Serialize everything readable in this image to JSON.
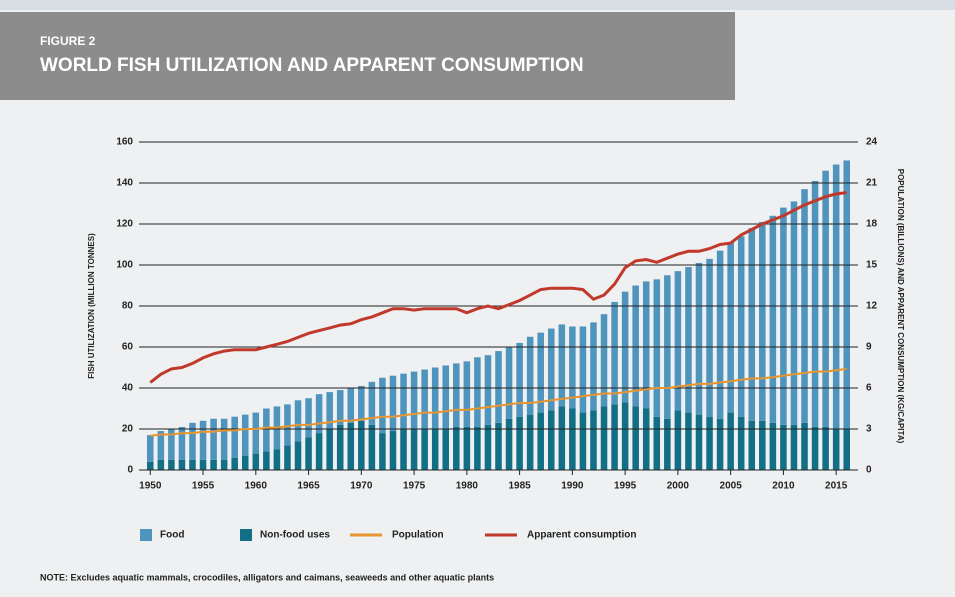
{
  "chart_data": {
    "type": "bar",
    "figure_label": "FIGURE 2",
    "title": "WORLD FISH UTILIZATION AND APPARENT CONSUMPTION",
    "ylabel": "FISH UTILIZATION (MILLION TONNES)",
    "y2label": "POPULATION (BILLIONS) AND APPARENT CONSUMPTION (KG/CAPITA)",
    "note": "NOTE: Excludes aquatic mammals, crocodiles, alligators and caimans, seaweeds and other aquatic plants",
    "x": [
      1950,
      1951,
      1952,
      1953,
      1954,
      1955,
      1956,
      1957,
      1958,
      1959,
      1960,
      1961,
      1962,
      1963,
      1964,
      1965,
      1966,
      1967,
      1968,
      1969,
      1970,
      1971,
      1972,
      1973,
      1974,
      1975,
      1976,
      1977,
      1978,
      1979,
      1980,
      1981,
      1982,
      1983,
      1984,
      1985,
      1986,
      1987,
      1988,
      1989,
      1990,
      1991,
      1992,
      1993,
      1994,
      1995,
      1996,
      1997,
      1998,
      1999,
      2000,
      2001,
      2002,
      2003,
      2004,
      2005,
      2006,
      2007,
      2008,
      2009,
      2010,
      2011,
      2012,
      2013,
      2014,
      2015,
      2016
    ],
    "xlim": [
      1949.5,
      2016.5
    ],
    "xticks": [
      1950,
      1955,
      1960,
      1965,
      1970,
      1975,
      1980,
      1985,
      1990,
      1995,
      2000,
      2005,
      2010,
      2015
    ],
    "ylim": [
      0,
      160
    ],
    "yticks": [
      0,
      20,
      40,
      60,
      80,
      100,
      120,
      140,
      160
    ],
    "y2lim": [
      0,
      24
    ],
    "y2ticks": [
      0,
      3,
      6,
      9,
      12,
      15,
      18,
      21,
      24
    ],
    "grid": true,
    "series": [
      {
        "name": "Food",
        "type": "bar",
        "color": "#4f94bd",
        "values": [
          13,
          14,
          15,
          16,
          18,
          19,
          20,
          20,
          20,
          20,
          20,
          21,
          21,
          20,
          20,
          19,
          19,
          18,
          17,
          17,
          17,
          21,
          27,
          27,
          27,
          28,
          29,
          30,
          31,
          31,
          32,
          34,
          34,
          35,
          35,
          36,
          38,
          39,
          40,
          40,
          40,
          42,
          43,
          45,
          50,
          54,
          59,
          62,
          67,
          70,
          68,
          71,
          74,
          77,
          82,
          83,
          88,
          94,
          97,
          101,
          106,
          109,
          114,
          120,
          125,
          129,
          131
        ]
      },
      {
        "name": "Non-food uses",
        "type": "bar",
        "color": "#136f86",
        "values": [
          4,
          5,
          5,
          5,
          5,
          5,
          5,
          5,
          6,
          7,
          8,
          9,
          10,
          12,
          14,
          16,
          18,
          20,
          22,
          23,
          24,
          22,
          18,
          19,
          20,
          20,
          20,
          20,
          20,
          21,
          21,
          21,
          22,
          23,
          25,
          26,
          27,
          28,
          29,
          31,
          30,
          28,
          29,
          31,
          32,
          33,
          31,
          30,
          26,
          25,
          29,
          28,
          27,
          26,
          25,
          28,
          26,
          24,
          24,
          23,
          22,
          22,
          23,
          21,
          21,
          20,
          20
        ]
      },
      {
        "name": "Population",
        "type": "line",
        "axis": "y2",
        "color": "#e8952f",
        "values": [
          2.5,
          2.6,
          2.6,
          2.7,
          2.7,
          2.8,
          2.8,
          2.9,
          2.9,
          3.0,
          3.0,
          3.1,
          3.1,
          3.2,
          3.3,
          3.3,
          3.4,
          3.5,
          3.6,
          3.6,
          3.7,
          3.8,
          3.9,
          3.9,
          4.0,
          4.1,
          4.2,
          4.2,
          4.3,
          4.4,
          4.4,
          4.5,
          4.6,
          4.7,
          4.8,
          4.9,
          4.9,
          5.0,
          5.1,
          5.2,
          5.3,
          5.4,
          5.5,
          5.6,
          5.6,
          5.7,
          5.8,
          5.9,
          6.0,
          6.0,
          6.1,
          6.2,
          6.3,
          6.3,
          6.4,
          6.5,
          6.6,
          6.7,
          6.7,
          6.8,
          6.9,
          7.0,
          7.1,
          7.2,
          7.2,
          7.3,
          7.4
        ]
      },
      {
        "name": "Apparent consumption",
        "type": "line",
        "axis": "y2",
        "color": "#c0392b",
        "values": [
          6.4,
          7.0,
          7.4,
          7.5,
          7.8,
          8.2,
          8.5,
          8.7,
          8.8,
          8.8,
          8.8,
          9.0,
          9.2,
          9.4,
          9.7,
          10.0,
          10.2,
          10.4,
          10.6,
          10.7,
          11.0,
          11.2,
          11.5,
          11.8,
          11.8,
          11.7,
          11.8,
          11.8,
          11.8,
          11.8,
          11.5,
          11.8,
          12.0,
          11.8,
          12.1,
          12.4,
          12.8,
          13.2,
          13.3,
          13.3,
          13.3,
          13.2,
          12.5,
          12.8,
          13.6,
          14.8,
          15.3,
          15.4,
          15.2,
          15.5,
          15.8,
          16.0,
          16.0,
          16.2,
          16.5,
          16.6,
          17.2,
          17.6,
          18.0,
          18.3,
          18.6,
          19.0,
          19.4,
          19.7,
          20.0,
          20.2,
          20.3
        ]
      }
    ]
  }
}
